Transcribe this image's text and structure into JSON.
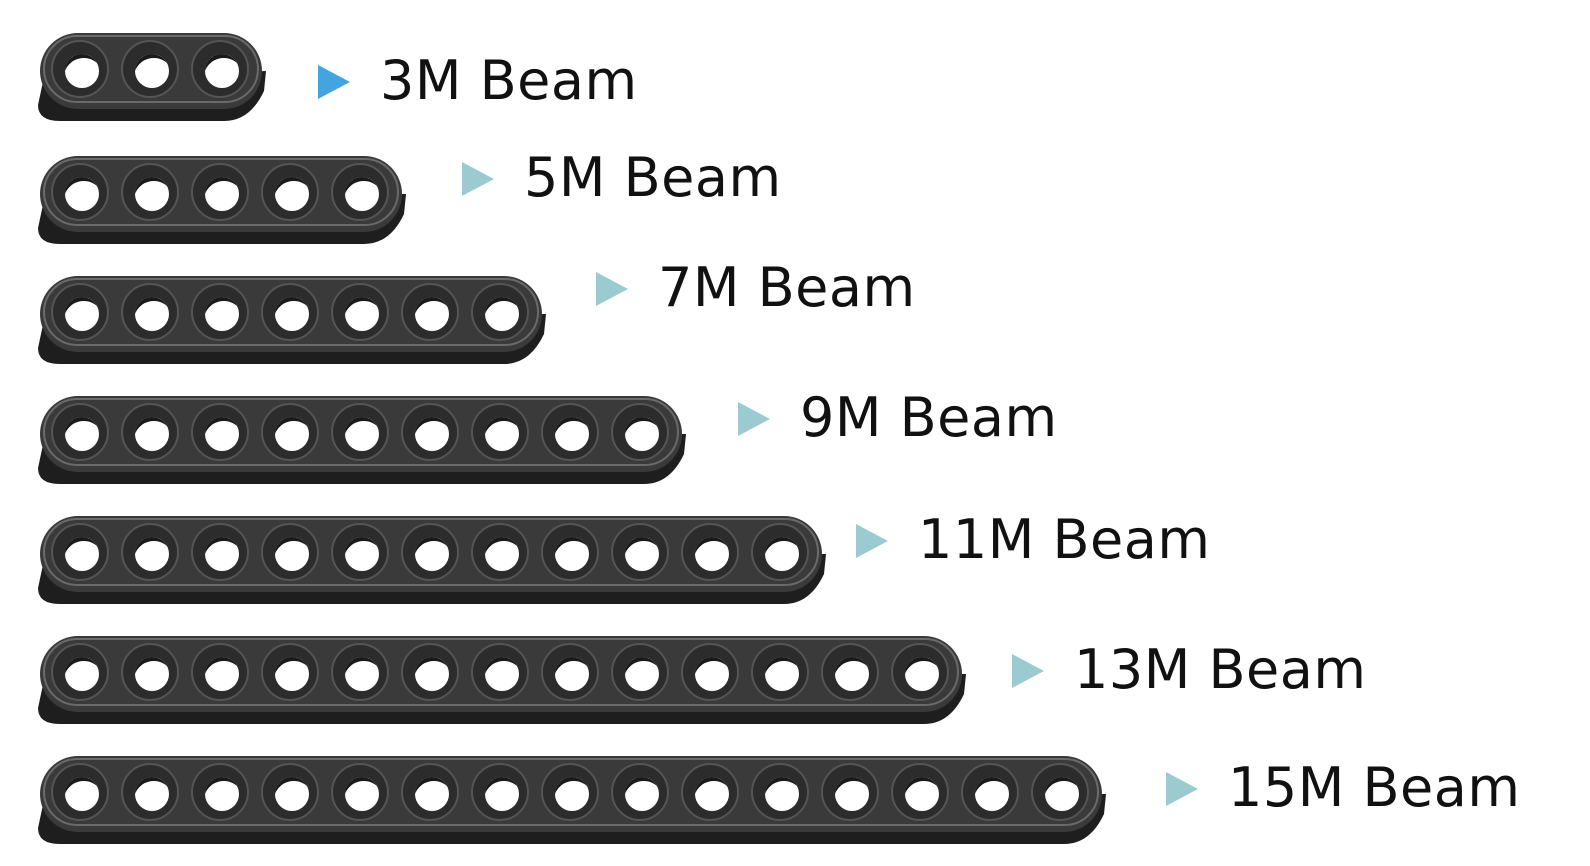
{
  "beams": [
    {
      "label": "3M Beam",
      "holes": 3
    },
    {
      "label": "5M Beam",
      "holes": 5
    },
    {
      "label": "7M Beam",
      "holes": 7
    },
    {
      "label": "9M Beam",
      "holes": 9
    },
    {
      "label": "11M Beam",
      "holes": 11
    },
    {
      "label": "13M Beam",
      "holes": 13
    },
    {
      "label": "15M Beam",
      "holes": 15
    }
  ],
  "colors": {
    "beam_body": "#3a3a3a",
    "beam_edge": "#1e1e1e",
    "beam_highlight": "#6a6a6a",
    "bullet_first": "#43a4e0",
    "bullet": "#9bcbd0",
    "text": "#111111"
  }
}
